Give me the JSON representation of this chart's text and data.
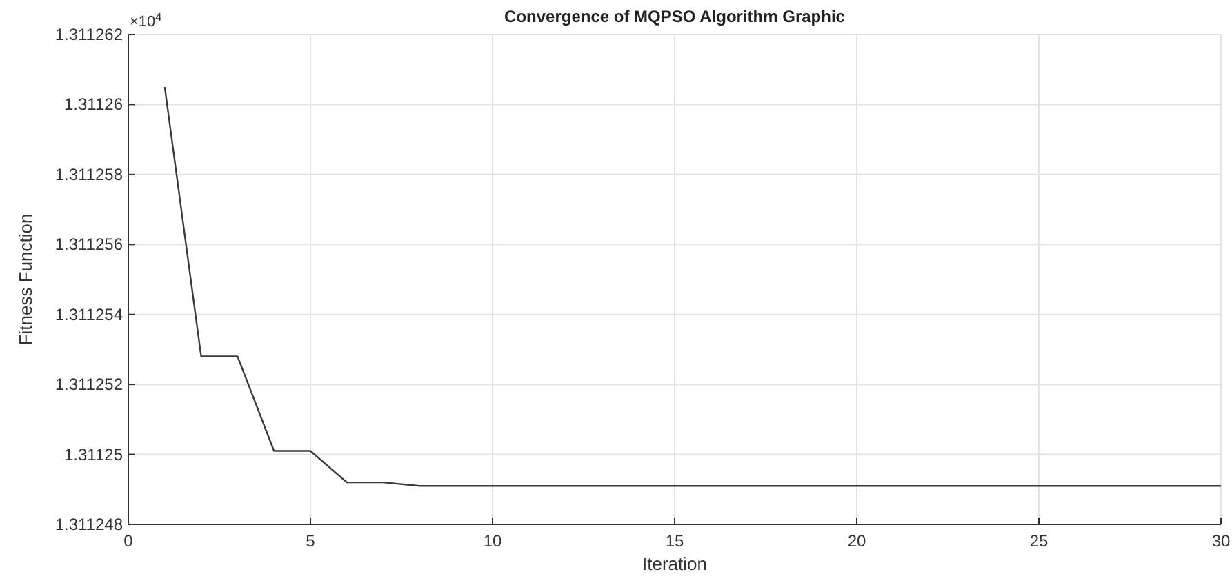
{
  "chart_data": {
    "type": "line",
    "title": "Convergence of MQPSO Algorithm Graphic",
    "xlabel": "Iteration",
    "ylabel": "Fitness Function",
    "annotations": [
      "×10$^{4}$"
    ],
    "x": [
      1,
      2,
      3,
      4,
      5,
      6,
      7,
      8,
      9,
      10,
      11,
      12,
      13,
      14,
      15,
      16,
      17,
      18,
      19,
      20,
      21,
      22,
      23,
      24,
      25,
      26,
      27,
      28,
      29,
      30
    ],
    "series": [
      {
        "color": "#3a3a3a",
        "values": [
          1.3112605,
          1.3112528,
          1.3112528,
          1.3112501,
          1.3112501,
          1.3112492,
          1.3112492,
          1.3112491,
          1.3112491,
          1.3112491,
          1.3112491,
          1.3112491,
          1.3112491,
          1.3112491,
          1.3112491,
          1.3112491,
          1.3112491,
          1.3112491,
          1.3112491,
          1.3112491,
          1.3112491,
          1.3112491,
          1.3112491,
          1.3112491,
          1.3112491,
          1.3112491,
          1.3112491,
          1.3112491,
          1.3112491,
          1.3112491
        ]
      }
    ],
    "xlim": [
      0,
      30
    ],
    "xticks": [
      0,
      5,
      10,
      15,
      20,
      25,
      30
    ],
    "ylim": [
      1.311248,
      1.311262
    ],
    "yticks": [
      1.311248,
      1.31125,
      1.311252,
      1.311254,
      1.311256,
      1.311258,
      1.31126,
      1.311262
    ],
    "grid": true,
    "marker": "none",
    "line_style": "solid"
  }
}
